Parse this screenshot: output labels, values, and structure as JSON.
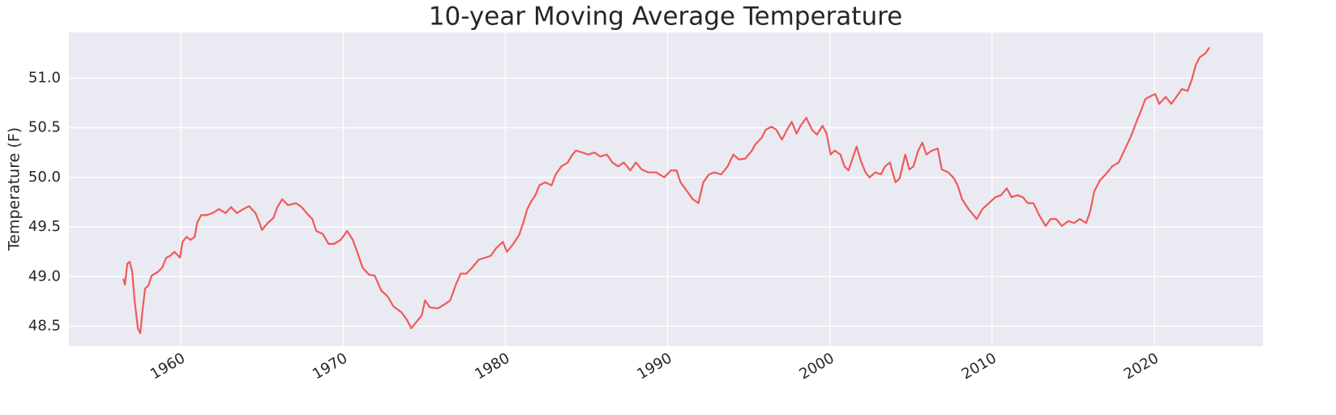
{
  "chart_data": {
    "type": "line",
    "title": "10-year Moving Average Temperature",
    "y_label": "Temperature (F)",
    "color": "#f05a5a",
    "background": "#eaeaf2",
    "grid": true,
    "xlim": [
      1953.1,
      2026.7
    ],
    "xticks": [
      1960,
      1970,
      1980,
      1990,
      2000,
      2010,
      2020
    ],
    "ylim": [
      48.3,
      51.46
    ],
    "yticks": [
      48.5,
      {
        "value": 49,
        "label": "49.0"
      },
      49.5,
      {
        "value": 50,
        "label": "50.0"
      },
      50.5,
      {
        "value": 51,
        "label": "51.0"
      }
    ],
    "x": [
      1956.45,
      1956.55,
      1956.7,
      1956.85,
      1957.0,
      1957.15,
      1957.35,
      1957.5,
      1957.65,
      1957.8,
      1958.0,
      1958.2,
      1958.6,
      1958.85,
      1959.1,
      1959.35,
      1959.6,
      1959.95,
      1960.1,
      1960.35,
      1960.6,
      1960.85,
      1961.0,
      1961.25,
      1961.6,
      1961.95,
      1962.35,
      1962.75,
      1963.1,
      1963.45,
      1963.85,
      1964.2,
      1964.6,
      1964.85,
      1965.0,
      1965.35,
      1965.7,
      1965.95,
      1966.25,
      1966.6,
      1967.1,
      1967.45,
      1967.75,
      1968.1,
      1968.35,
      1968.75,
      1969.1,
      1969.45,
      1969.85,
      1970.25,
      1970.6,
      1970.95,
      1971.2,
      1971.6,
      1971.95,
      1972.35,
      1972.75,
      1973.1,
      1973.6,
      1973.95,
      1974.2,
      1974.45,
      1974.85,
      1975.05,
      1975.35,
      1975.85,
      1976.25,
      1976.6,
      1976.95,
      1977.25,
      1977.6,
      1977.95,
      1978.35,
      1978.75,
      1979.1,
      1979.45,
      1979.85,
      1980.1,
      1980.45,
      1980.85,
      1981.1,
      1981.35,
      1981.6,
      1981.85,
      1982.1,
      1982.45,
      1982.85,
      1983.1,
      1983.45,
      1983.85,
      1984.1,
      1984.35,
      1984.75,
      1985.1,
      1985.5,
      1985.85,
      1986.25,
      1986.6,
      1986.95,
      1987.3,
      1987.7,
      1988.05,
      1988.4,
      1988.8,
      1989.3,
      1989.8,
      1990.2,
      1990.55,
      1990.8,
      1991.2,
      1991.55,
      1991.9,
      1992.2,
      1992.55,
      1992.9,
      1993.3,
      1993.7,
      1994.05,
      1994.4,
      1994.8,
      1995.2,
      1995.4,
      1995.8,
      1996.05,
      1996.4,
      1996.7,
      1997.05,
      1997.4,
      1997.65,
      1997.95,
      1998.2,
      1998.55,
      1998.9,
      1999.2,
      1999.55,
      1999.8,
      2000.05,
      2000.3,
      2000.65,
      2000.9,
      2001.15,
      2001.4,
      2001.65,
      2001.9,
      2002.2,
      2002.45,
      2002.8,
      2003.15,
      2003.4,
      2003.7,
      2004.05,
      2004.3,
      2004.65,
      2004.9,
      2005.15,
      2005.45,
      2005.7,
      2005.95,
      2006.3,
      2006.65,
      2006.9,
      2007.3,
      2007.65,
      2007.9,
      2008.15,
      2008.55,
      2009.05,
      2009.4,
      2009.8,
      2010.2,
      2010.55,
      2010.9,
      2011.2,
      2011.55,
      2011.9,
      2012.2,
      2012.55,
      2012.9,
      2013.3,
      2013.6,
      2013.95,
      2014.3,
      2014.7,
      2015.05,
      2015.4,
      2015.8,
      2016.05,
      2016.3,
      2016.65,
      2017.0,
      2017.4,
      2017.8,
      2018.15,
      2018.55,
      2018.9,
      2019.2,
      2019.45,
      2019.8,
      2020.05,
      2020.3,
      2020.7,
      2021.05,
      2021.4,
      2021.7,
      2022.05,
      2022.3,
      2022.55,
      2022.8,
      2023.15,
      2023.4
    ],
    "values": [
      48.98,
      48.92,
      49.13,
      49.15,
      49.05,
      48.76,
      48.48,
      48.43,
      48.68,
      48.88,
      48.91,
      49.01,
      49.05,
      49.09,
      49.19,
      49.21,
      49.25,
      49.19,
      49.35,
      49.4,
      49.37,
      49.4,
      49.54,
      49.62,
      49.62,
      49.64,
      49.68,
      49.64,
      49.7,
      49.64,
      49.68,
      49.71,
      49.64,
      49.54,
      49.47,
      49.54,
      49.59,
      49.7,
      49.78,
      49.72,
      49.74,
      49.7,
      49.64,
      49.58,
      49.46,
      49.43,
      49.33,
      49.33,
      49.37,
      49.46,
      49.37,
      49.21,
      49.09,
      49.02,
      49.01,
      48.86,
      48.8,
      48.7,
      48.64,
      48.56,
      48.48,
      48.53,
      48.61,
      48.76,
      48.69,
      48.68,
      48.72,
      48.76,
      48.92,
      49.03,
      49.03,
      49.09,
      49.17,
      49.19,
      49.21,
      49.29,
      49.35,
      49.25,
      49.32,
      49.42,
      49.54,
      49.68,
      49.76,
      49.82,
      49.92,
      49.95,
      49.92,
      50.03,
      50.11,
      50.15,
      50.22,
      50.27,
      50.25,
      50.23,
      50.25,
      50.21,
      50.23,
      50.15,
      50.11,
      50.15,
      50.07,
      50.15,
      50.08,
      50.05,
      50.05,
      50.0,
      50.07,
      50.07,
      49.95,
      49.86,
      49.78,
      49.74,
      49.95,
      50.03,
      50.05,
      50.03,
      50.11,
      50.23,
      50.18,
      50.19,
      50.27,
      50.33,
      50.4,
      50.48,
      50.51,
      50.48,
      50.38,
      50.49,
      50.56,
      50.44,
      50.52,
      50.6,
      50.48,
      50.43,
      50.52,
      50.44,
      50.23,
      50.27,
      50.23,
      50.11,
      50.07,
      50.19,
      50.31,
      50.17,
      50.05,
      50.0,
      50.05,
      50.03,
      50.11,
      50.15,
      49.95,
      49.99,
      50.23,
      50.08,
      50.11,
      50.27,
      50.35,
      50.23,
      50.27,
      50.29,
      50.08,
      50.05,
      49.99,
      49.91,
      49.78,
      49.68,
      49.58,
      49.68,
      49.74,
      49.8,
      49.82,
      49.89,
      49.8,
      49.82,
      49.8,
      49.74,
      49.74,
      49.62,
      49.51,
      49.58,
      49.58,
      49.51,
      49.56,
      49.54,
      49.58,
      49.54,
      49.66,
      49.86,
      49.97,
      50.03,
      50.11,
      50.15,
      50.27,
      50.41,
      50.56,
      50.68,
      50.79,
      50.82,
      50.84,
      50.74,
      50.81,
      50.74,
      50.82,
      50.89,
      50.87,
      50.98,
      51.13,
      51.21,
      51.25,
      51.31
    ]
  }
}
